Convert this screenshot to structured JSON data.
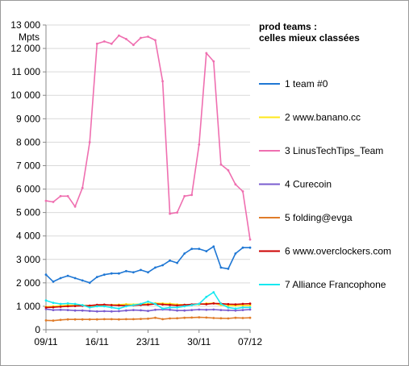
{
  "chart_data": {
    "type": "line",
    "title": "",
    "ylabel": "Mpts",
    "xlabel": "",
    "ylim": [
      0,
      13000
    ],
    "ytick_step": 1000,
    "ytick_labels": [
      "0",
      "1 000",
      "2 000",
      "3 000",
      "4 000",
      "5 000",
      "6 000",
      "7 000",
      "8 000",
      "9 000",
      "10 000",
      "11 000",
      "12 000",
      "13 000"
    ],
    "x_tick_labels": [
      {
        "index": 0,
        "label": "09/11"
      },
      {
        "index": 7,
        "label": "16/11"
      },
      {
        "index": 14,
        "label": "23/11"
      },
      {
        "index": 21,
        "label": "30/11"
      },
      {
        "index": 28,
        "label": "07/12"
      }
    ],
    "grid": "horizontal",
    "legend": {
      "title_line1": "prod teams :",
      "title_line2": "celles mieux classées",
      "placement": "right"
    },
    "series": [
      {
        "name": "1 team #0",
        "color": "#1f77d4",
        "values": [
          2350,
          2050,
          2200,
          2300,
          2200,
          2100,
          2000,
          2250,
          2350,
          2400,
          2400,
          2500,
          2450,
          2550,
          2450,
          2650,
          2750,
          2950,
          2850,
          3250,
          3450,
          3450,
          3350,
          3550,
          2650,
          2600,
          3250,
          3500,
          3500
        ]
      },
      {
        "name": "2 www.banano.cc",
        "color": "#ffe81a",
        "values": [
          980,
          1000,
          1020,
          1050,
          1040,
          1050,
          1020,
          1030,
          1050,
          1060,
          1070,
          1090,
          1080,
          1100,
          1100,
          1130,
          1120,
          1110,
          1080,
          1060,
          1060,
          1080,
          1120,
          1130,
          1050,
          1020,
          1030,
          1040,
          1040
        ]
      },
      {
        "name": "3 LinusTechTips_Team",
        "color": "#ef6fb0",
        "values": [
          5500,
          5450,
          5700,
          5700,
          5250,
          6050,
          8000,
          12200,
          12300,
          12200,
          12550,
          12400,
          12150,
          12450,
          12500,
          12350,
          10600,
          4950,
          5000,
          5700,
          5750,
          7900,
          11800,
          11450,
          7050,
          6800,
          6200,
          5900,
          3850
        ]
      },
      {
        "name": "4 Curecoin",
        "color": "#7a5ccf",
        "values": [
          880,
          840,
          850,
          840,
          820,
          820,
          800,
          780,
          790,
          780,
          790,
          820,
          840,
          830,
          800,
          850,
          860,
          850,
          820,
          820,
          840,
          860,
          850,
          860,
          840,
          830,
          820,
          840,
          860
        ]
      },
      {
        "name": "5 folding@evga",
        "color": "#e07c2a",
        "values": [
          400,
          390,
          420,
          440,
          440,
          440,
          440,
          440,
          450,
          450,
          440,
          450,
          450,
          460,
          470,
          510,
          450,
          480,
          490,
          510,
          520,
          530,
          520,
          500,
          490,
          480,
          510,
          500,
          510
        ]
      },
      {
        "name": "6 www.overclockers.com",
        "color": "#cc0000",
        "values": [
          950,
          960,
          980,
          1000,
          1010,
          1020,
          1030,
          1060,
          1070,
          1050,
          1040,
          1030,
          1040,
          1060,
          1070,
          1100,
          1080,
          1060,
          1040,
          1060,
          1080,
          1100,
          1090,
          1120,
          1110,
          1090,
          1080,
          1100,
          1110
        ]
      },
      {
        "name": "7 Alliance Francophone",
        "color": "#17e8f0",
        "values": [
          1250,
          1150,
          1100,
          1120,
          1100,
          1050,
          950,
          1000,
          1000,
          950,
          900,
          1000,
          1050,
          1100,
          1200,
          1100,
          900,
          950,
          950,
          1000,
          1050,
          1100,
          1400,
          1600,
          1100,
          950,
          900,
          950,
          950
        ]
      }
    ]
  }
}
